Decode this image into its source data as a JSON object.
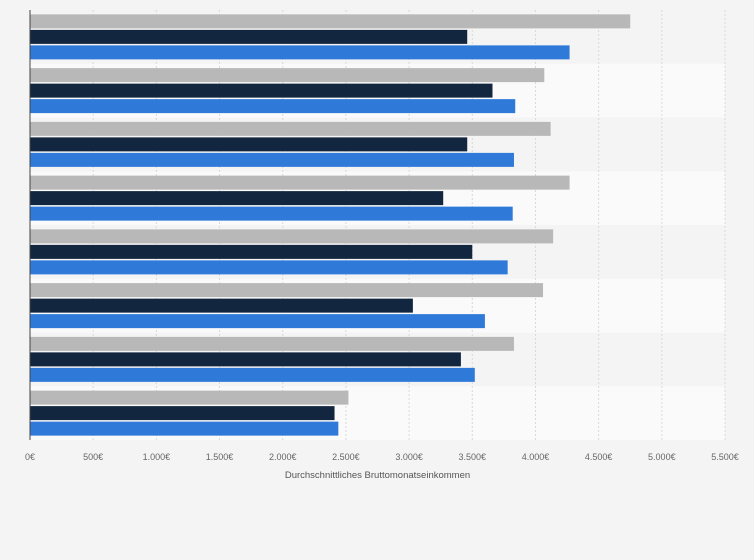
{
  "chart_data": {
    "type": "bar",
    "orientation": "horizontal",
    "categories": [
      "",
      "",
      "",
      "",
      "",
      "",
      "",
      ""
    ],
    "series": [
      {
        "color": "#b8b8b8",
        "values": [
          4750,
          4070,
          4120,
          4270,
          4140,
          4060,
          3830,
          2520
        ]
      },
      {
        "color": "#12263f",
        "values": [
          3460,
          3660,
          3460,
          3270,
          3500,
          3030,
          3410,
          2410
        ]
      },
      {
        "color": "#2f7ad9",
        "values": [
          4270,
          3840,
          3830,
          3820,
          3780,
          3600,
          3520,
          2440
        ]
      }
    ],
    "xlabel": "Durchschnittliches Bruttomonatseinkommen",
    "ylabel": "",
    "xlim": [
      0,
      5500
    ],
    "xticks": [
      0,
      500,
      1000,
      1500,
      2000,
      2500,
      3000,
      3500,
      4000,
      4500,
      5000,
      5500
    ],
    "xtick_labels": [
      "0€",
      "500€",
      "1.000€",
      "1.500€",
      "2.000€",
      "2.500€",
      "3.000€",
      "3.500€",
      "4.000€",
      "4.500€",
      "5.000€",
      "5.500€"
    ],
    "grid": true,
    "legend": "none"
  }
}
